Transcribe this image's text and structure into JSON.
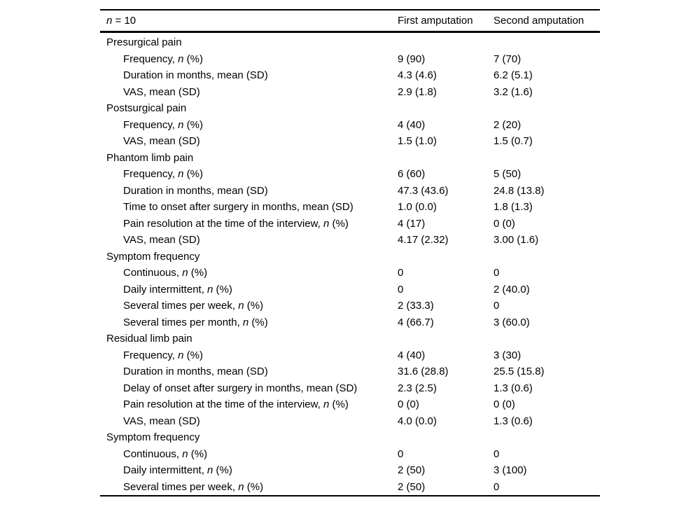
{
  "colors": {
    "background": "#ffffff",
    "text": "#000000",
    "rule": "#000000"
  },
  "table": {
    "header": {
      "col0_italic": "n",
      "col0_rest": " = 10",
      "col1": "First amputation",
      "col2": "Second amputation"
    },
    "rows": [
      {
        "type": "section",
        "pre": "Presurgical pain",
        "it": "",
        "post": "",
        "col1": "",
        "col2": ""
      },
      {
        "type": "item",
        "pre": "Frequency, ",
        "it": "n",
        "post": " (%)",
        "col1": "9 (90)",
        "col2": "7 (70)"
      },
      {
        "type": "item",
        "pre": "Duration in months, mean (SD)",
        "it": "",
        "post": "",
        "col1": "4.3 (4.6)",
        "col2": "6.2 (5.1)"
      },
      {
        "type": "item",
        "pre": "VAS, mean (SD)",
        "it": "",
        "post": "",
        "col1": "2.9 (1.8)",
        "col2": "3.2 (1.6)"
      },
      {
        "type": "section",
        "pre": "Postsurgical pain",
        "it": "",
        "post": "",
        "col1": "",
        "col2": ""
      },
      {
        "type": "item",
        "pre": "Frequency, ",
        "it": "n",
        "post": " (%)",
        "col1": "4 (40)",
        "col2": "2 (20)"
      },
      {
        "type": "item",
        "pre": "VAS, mean (SD)",
        "it": "",
        "post": "",
        "col1": "1.5 (1.0)",
        "col2": "1.5 (0.7)"
      },
      {
        "type": "section",
        "pre": "Phantom limb pain",
        "it": "",
        "post": "",
        "col1": "",
        "col2": ""
      },
      {
        "type": "item",
        "pre": "Frequency, ",
        "it": "n",
        "post": " (%)",
        "col1": "6 (60)",
        "col2": "5 (50)"
      },
      {
        "type": "item",
        "pre": "Duration in months, mean (SD)",
        "it": "",
        "post": "",
        "col1": "47.3 (43.6)",
        "col2": "24.8 (13.8)"
      },
      {
        "type": "item",
        "pre": "Time to onset after surgery in months, mean (SD)",
        "it": "",
        "post": "",
        "col1": "1.0 (0.0)",
        "col2": "1.8 (1.3)"
      },
      {
        "type": "item",
        "pre": "Pain resolution at the time of the interview, ",
        "it": "n",
        "post": " (%)",
        "col1": "4 (17)",
        "col2": "0 (0)"
      },
      {
        "type": "item",
        "pre": "VAS, mean (SD)",
        "it": "",
        "post": "",
        "col1": "4.17 (2.32)",
        "col2": "3.00 (1.6)"
      },
      {
        "type": "section",
        "pre": "Symptom frequency",
        "it": "",
        "post": "",
        "col1": "",
        "col2": ""
      },
      {
        "type": "item",
        "pre": "Continuous, ",
        "it": "n",
        "post": " (%)",
        "col1": "0",
        "col2": "0"
      },
      {
        "type": "item",
        "pre": "Daily intermittent, ",
        "it": "n",
        "post": " (%)",
        "col1": "0",
        "col2": "2 (40.0)"
      },
      {
        "type": "item",
        "pre": "Several times per week, ",
        "it": "n",
        "post": " (%)",
        "col1": "2 (33.3)",
        "col2": "0"
      },
      {
        "type": "item",
        "pre": "Several times per month, ",
        "it": "n",
        "post": " (%)",
        "col1": "4 (66.7)",
        "col2": "3 (60.0)"
      },
      {
        "type": "section",
        "pre": "Residual limb pain",
        "it": "",
        "post": "",
        "col1": "",
        "col2": ""
      },
      {
        "type": "item",
        "pre": "Frequency, ",
        "it": "n",
        "post": " (%)",
        "col1": "4 (40)",
        "col2": "3 (30)"
      },
      {
        "type": "item",
        "pre": "Duration in months, mean (SD)",
        "it": "",
        "post": "",
        "col1": "31.6 (28.8)",
        "col2": "25.5 (15.8)"
      },
      {
        "type": "item",
        "pre": "Delay of onset after surgery in months, mean (SD)",
        "it": "",
        "post": "",
        "col1": "2.3 (2.5)",
        "col2": "1.3 (0.6)"
      },
      {
        "type": "item",
        "pre": "Pain resolution at the time of the interview, ",
        "it": "n",
        "post": " (%)",
        "col1": "0 (0)",
        "col2": "0 (0)"
      },
      {
        "type": "item",
        "pre": "VAS, mean (SD)",
        "it": "",
        "post": "",
        "col1": "4.0 (0.0)",
        "col2": "1.3 (0.6)"
      },
      {
        "type": "section",
        "pre": "Symptom frequency",
        "it": "",
        "post": "",
        "col1": "",
        "col2": ""
      },
      {
        "type": "item",
        "pre": "Continuous, ",
        "it": "n",
        "post": " (%)",
        "col1": "0",
        "col2": "0"
      },
      {
        "type": "item",
        "pre": "Daily intermittent, ",
        "it": "n",
        "post": " (%)",
        "col1": "2 (50)",
        "col2": "3 (100)"
      },
      {
        "type": "item",
        "pre": "Several times per week, ",
        "it": "n",
        "post": " (%)",
        "col1": "2 (50)",
        "col2": "0"
      }
    ]
  }
}
